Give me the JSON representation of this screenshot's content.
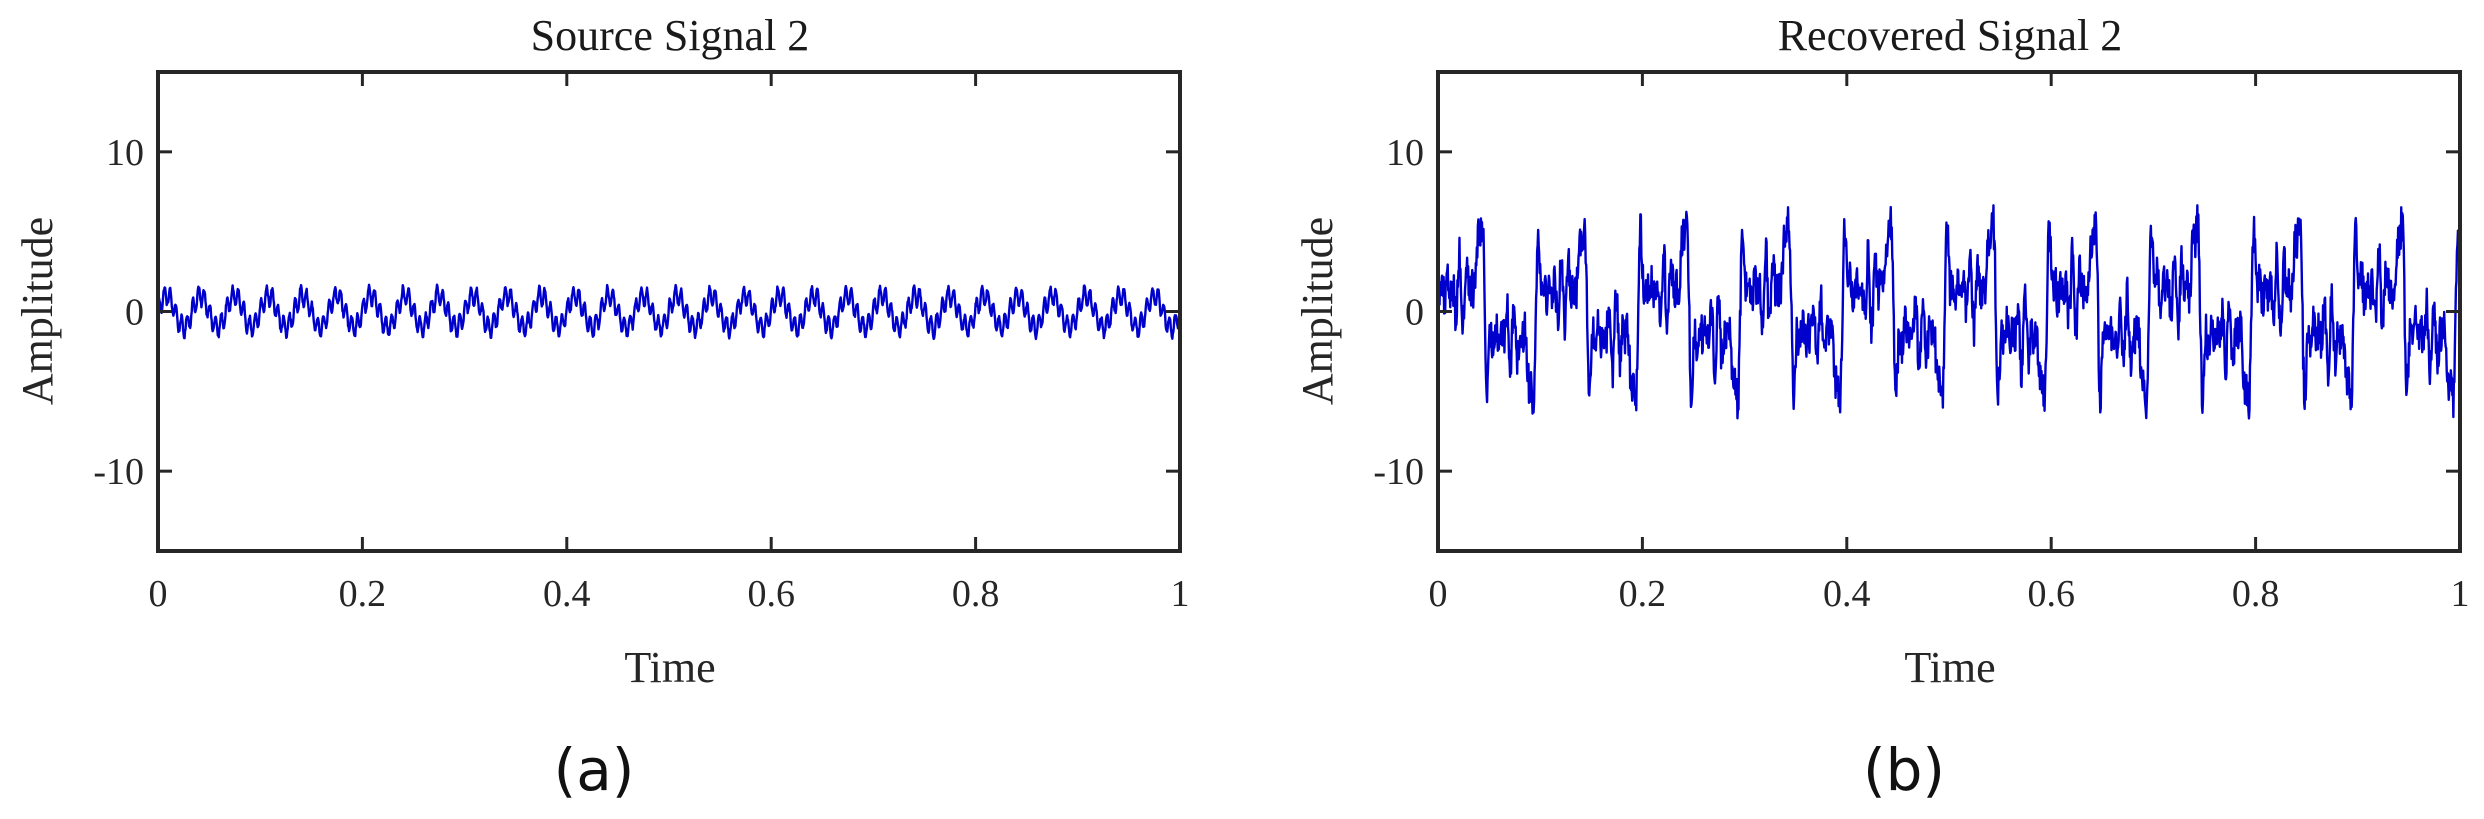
{
  "chart_data": [
    {
      "type": "line",
      "title": "Source Signal 2",
      "xlabel": "Time",
      "ylabel": "Amplitude",
      "panel_label": "(a)",
      "xlim": [
        0,
        1
      ],
      "ylim": [
        -15,
        15
      ],
      "xticks": [
        0,
        0.2,
        0.4,
        0.6,
        0.8,
        1
      ],
      "xtick_labels": [
        "0",
        "0.2",
        "0.4",
        "0.6",
        "0.8",
        "1"
      ],
      "yticks": [
        -10,
        0,
        10
      ],
      "ytick_labels": [
        "-10",
        "0",
        "10"
      ],
      "grid": false,
      "color": "#0000cc",
      "signal_model": {
        "components": [
          {
            "amplitude": 1.0,
            "frequency": 30
          },
          {
            "amplitude": 0.6,
            "frequency": 180
          }
        ],
        "noise": 0.15
      }
    },
    {
      "type": "line",
      "title": "Recovered Signal 2",
      "xlabel": "Time",
      "ylabel": "Amplitude",
      "panel_label": "(b)",
      "xlim": [
        0,
        1
      ],
      "ylim": [
        -15,
        15
      ],
      "xticks": [
        0,
        0.2,
        0.4,
        0.6,
        0.8,
        1
      ],
      "xtick_labels": [
        "0",
        "0.2",
        "0.4",
        "0.6",
        "0.8",
        "1"
      ],
      "yticks": [
        -10,
        0,
        10
      ],
      "ytick_labels": [
        "-10",
        "0",
        "10"
      ],
      "grid": false,
      "color": "#0000cc",
      "signal_model": {
        "components": [
          {
            "amplitude": 2.2,
            "frequency": 10
          },
          {
            "amplitude": 1.6,
            "frequency": 30
          },
          {
            "amplitude": 1.4,
            "frequency": 50
          },
          {
            "amplitude": 1.2,
            "frequency": 70
          },
          {
            "amplitude": 1.1,
            "frequency": 90
          },
          {
            "amplitude": 1.0,
            "frequency": 130
          },
          {
            "amplitude": 0.9,
            "frequency": 170
          }
        ],
        "noise": 1.2
      }
    }
  ]
}
